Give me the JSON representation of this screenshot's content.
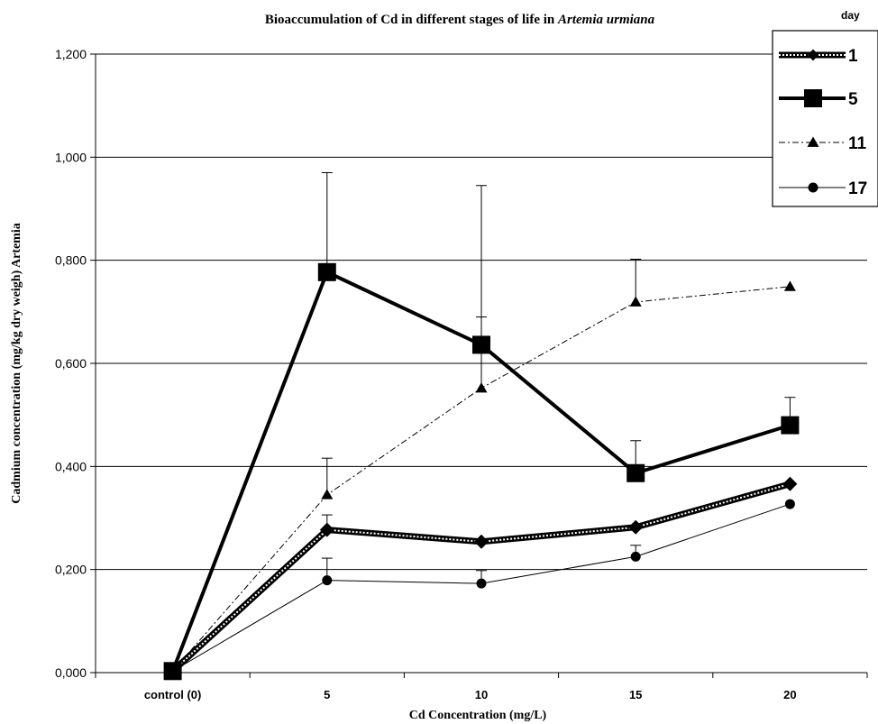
{
  "chart_data": {
    "type": "line",
    "title_prefix": "Bioaccumulation of Cd in different stages of life in ",
    "title_italic": "Artemia urmiana",
    "xlabel": "Cd Concentration (mg/L)",
    "ylabel": "Cadmium  concentration (mg/kg dry weigh) Artemia",
    "categories": [
      "control (0)",
      "5",
      "10",
      "15",
      "20"
    ],
    "ylim": [
      0,
      1.2
    ],
    "yticks": [
      "0,000",
      "0,200",
      "0,400",
      "0,600",
      "0,800",
      "1,000",
      "1,200"
    ],
    "ytick_values": [
      0,
      0.2,
      0.4,
      0.6,
      0.8,
      1.0,
      1.2
    ],
    "grid": "horizontal",
    "legend_title": "day",
    "legend_position": "top-right",
    "series": [
      {
        "name": "1",
        "marker": "diamond",
        "style": "dotted-thick",
        "values": [
          0.003,
          0.277,
          0.254,
          0.282,
          0.366
        ],
        "error": [
          0,
          0.029,
          0,
          0,
          0
        ]
      },
      {
        "name": "5",
        "marker": "square",
        "style": "solid-thick",
        "values": [
          0.003,
          0.777,
          0.636,
          0.387,
          0.48
        ],
        "error": [
          0,
          0.193,
          0.309,
          0.063,
          0.054
        ]
      },
      {
        "name": "11",
        "marker": "triangle",
        "style": "dashdot",
        "values": [
          0.003,
          0.345,
          0.552,
          0.719,
          0.749
        ],
        "error": [
          0,
          0.071,
          0.138,
          0.083,
          0
        ]
      },
      {
        "name": "17",
        "marker": "circle",
        "style": "solid-thin",
        "values": [
          0.003,
          0.179,
          0.173,
          0.225,
          0.327
        ],
        "error": [
          0,
          0.043,
          0.025,
          0.022,
          0
        ]
      }
    ]
  }
}
